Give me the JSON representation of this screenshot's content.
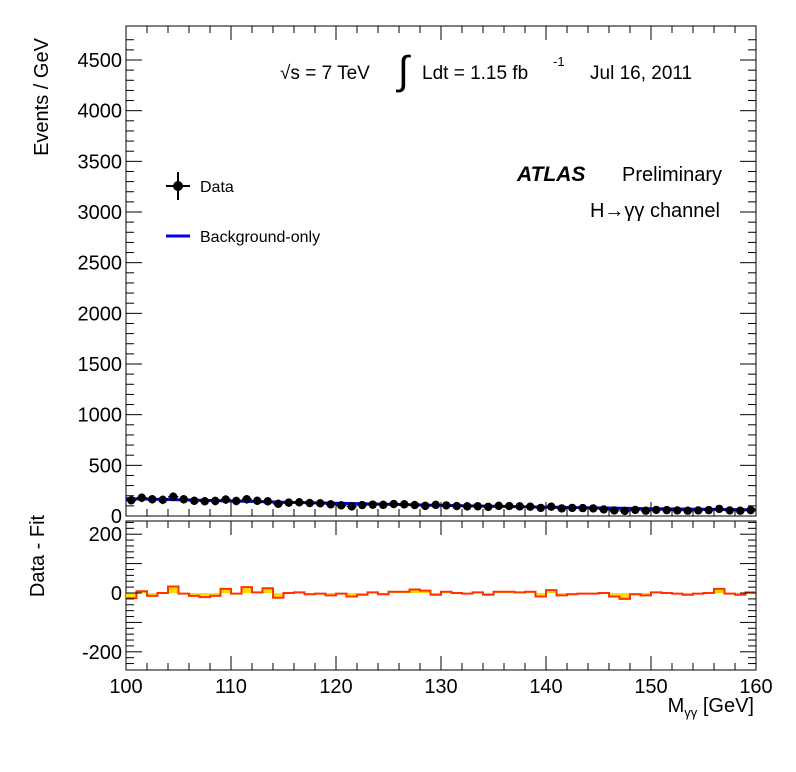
{
  "annotations": {
    "energy": "√s = 7 TeV",
    "integral_sign": "∫",
    "lumi_main": "Ldt = 1.15 fb",
    "lumi_exp": "-1",
    "date": "Jul 16, 2011",
    "experiment": "ATLAS",
    "status": "Preliminary",
    "channel": "H→γγ channel"
  },
  "legend": {
    "items": [
      {
        "label": "Data",
        "style": "marker-errorbar",
        "color": "#000000"
      },
      {
        "label": "Background-only",
        "style": "line",
        "color": "#0000ee"
      }
    ]
  },
  "colors": {
    "data": "#000000",
    "fit": "#0000ee",
    "residual_line": "#ff3300",
    "residual_fill": "#ffdd00"
  },
  "chart_data": [
    {
      "type": "scatter",
      "title": "",
      "xlabel": "",
      "ylabel": "Events / GeV",
      "xlim": [
        100,
        160
      ],
      "ylim": [
        0,
        4800
      ],
      "yticks": [
        "0",
        "500",
        "1000",
        "1500",
        "2000",
        "2500",
        "3000",
        "3500",
        "4000",
        "4500"
      ],
      "grid": false,
      "legend_position": "top-left",
      "series": [
        {
          "name": "Data",
          "x": [
            100.5,
            101.5,
            102.5,
            103.5,
            104.5,
            105.5,
            106.5,
            107.5,
            108.5,
            109.5,
            110.5,
            111.5,
            112.5,
            113.5,
            114.5,
            115.5,
            116.5,
            117.5,
            118.5,
            119.5,
            120.5,
            121.5,
            122.5,
            123.5,
            124.5,
            125.5,
            126.5,
            127.5,
            128.5,
            129.5,
            130.5,
            131.5,
            132.5,
            133.5,
            134.5,
            135.5,
            136.5,
            137.5,
            138.5,
            139.5,
            140.5,
            141.5,
            142.5,
            143.5,
            144.5,
            145.5,
            146.5,
            147.5,
            148.5,
            149.5,
            150.5,
            151.5,
            152.5,
            153.5,
            154.5,
            155.5,
            156.5,
            157.5,
            158.5,
            159.5
          ],
          "y": [
            155,
            180,
            165,
            160,
            190,
            165,
            150,
            145,
            148,
            162,
            148,
            165,
            150,
            145,
            120,
            132,
            135,
            128,
            125,
            115,
            105,
            95,
            108,
            112,
            110,
            118,
            115,
            108,
            100,
            110,
            104,
            98,
            95,
            96,
            90,
            100,
            98,
            95,
            92,
            80,
            92,
            75,
            80,
            78,
            75,
            65,
            55,
            50,
            60,
            52,
            60,
            58,
            55,
            52,
            55,
            58,
            70,
            55,
            52,
            58
          ],
          "error": [
            12,
            13,
            13,
            13,
            14,
            13,
            12,
            12,
            12,
            13,
            12,
            13,
            12,
            12,
            11,
            11,
            12,
            11,
            11,
            11,
            10,
            10,
            10,
            11,
            10,
            11,
            11,
            10,
            10,
            10,
            10,
            10,
            10,
            10,
            9,
            10,
            10,
            10,
            10,
            9,
            10,
            9,
            9,
            9,
            9,
            8,
            7,
            7,
            8,
            7,
            8,
            8,
            7,
            7,
            7,
            8,
            8,
            7,
            7,
            8
          ]
        },
        {
          "name": "Background-only",
          "x": [
            100,
            105,
            110,
            115,
            120,
            125,
            130,
            135,
            140,
            145,
            150,
            155,
            160
          ],
          "y": [
            172,
            160,
            148,
            136,
            125,
            115,
            105,
            96,
            88,
            80,
            72,
            66,
            60
          ]
        }
      ]
    },
    {
      "type": "bar",
      "title": "",
      "xlabel": "Mγγ [GeV]",
      "ylabel": "Data - Fit",
      "xlim": [
        100,
        160
      ],
      "ylim": [
        -250,
        250
      ],
      "xticks": [
        "100",
        "110",
        "120",
        "130",
        "140",
        "150",
        "160"
      ],
      "yticks": [
        "-200",
        "0",
        "200"
      ],
      "grid": false,
      "series": [
        {
          "name": "Data - Fit",
          "x": [
            100.5,
            101.5,
            102.5,
            103.5,
            104.5,
            105.5,
            106.5,
            107.5,
            108.5,
            109.5,
            110.5,
            111.5,
            112.5,
            113.5,
            114.5,
            115.5,
            116.5,
            117.5,
            118.5,
            119.5,
            120.5,
            121.5,
            122.5,
            123.5,
            124.5,
            125.5,
            126.5,
            127.5,
            128.5,
            129.5,
            130.5,
            131.5,
            132.5,
            133.5,
            134.5,
            135.5,
            136.5,
            137.5,
            138.5,
            139.5,
            140.5,
            141.5,
            142.5,
            143.5,
            144.5,
            145.5,
            146.5,
            147.5,
            148.5,
            149.5,
            150.5,
            151.5,
            152.5,
            153.5,
            154.5,
            155.5,
            156.5,
            157.5,
            158.5,
            159.5
          ],
          "values": [
            -18,
            6,
            -10,
            0,
            22,
            -2,
            -10,
            -14,
            -10,
            14,
            -2,
            20,
            2,
            16,
            -16,
            0,
            2,
            -4,
            -2,
            -8,
            -2,
            -12,
            -6,
            2,
            -4,
            4,
            4,
            12,
            8,
            -6,
            4,
            0,
            -2,
            2,
            -6,
            4,
            4,
            2,
            4,
            -12,
            10,
            -8,
            -4,
            -2,
            -2,
            0,
            -12,
            -20,
            -4,
            -8,
            2,
            0,
            -2,
            -6,
            -2,
            0,
            14,
            -2,
            -6,
            2
          ]
        }
      ]
    }
  ]
}
